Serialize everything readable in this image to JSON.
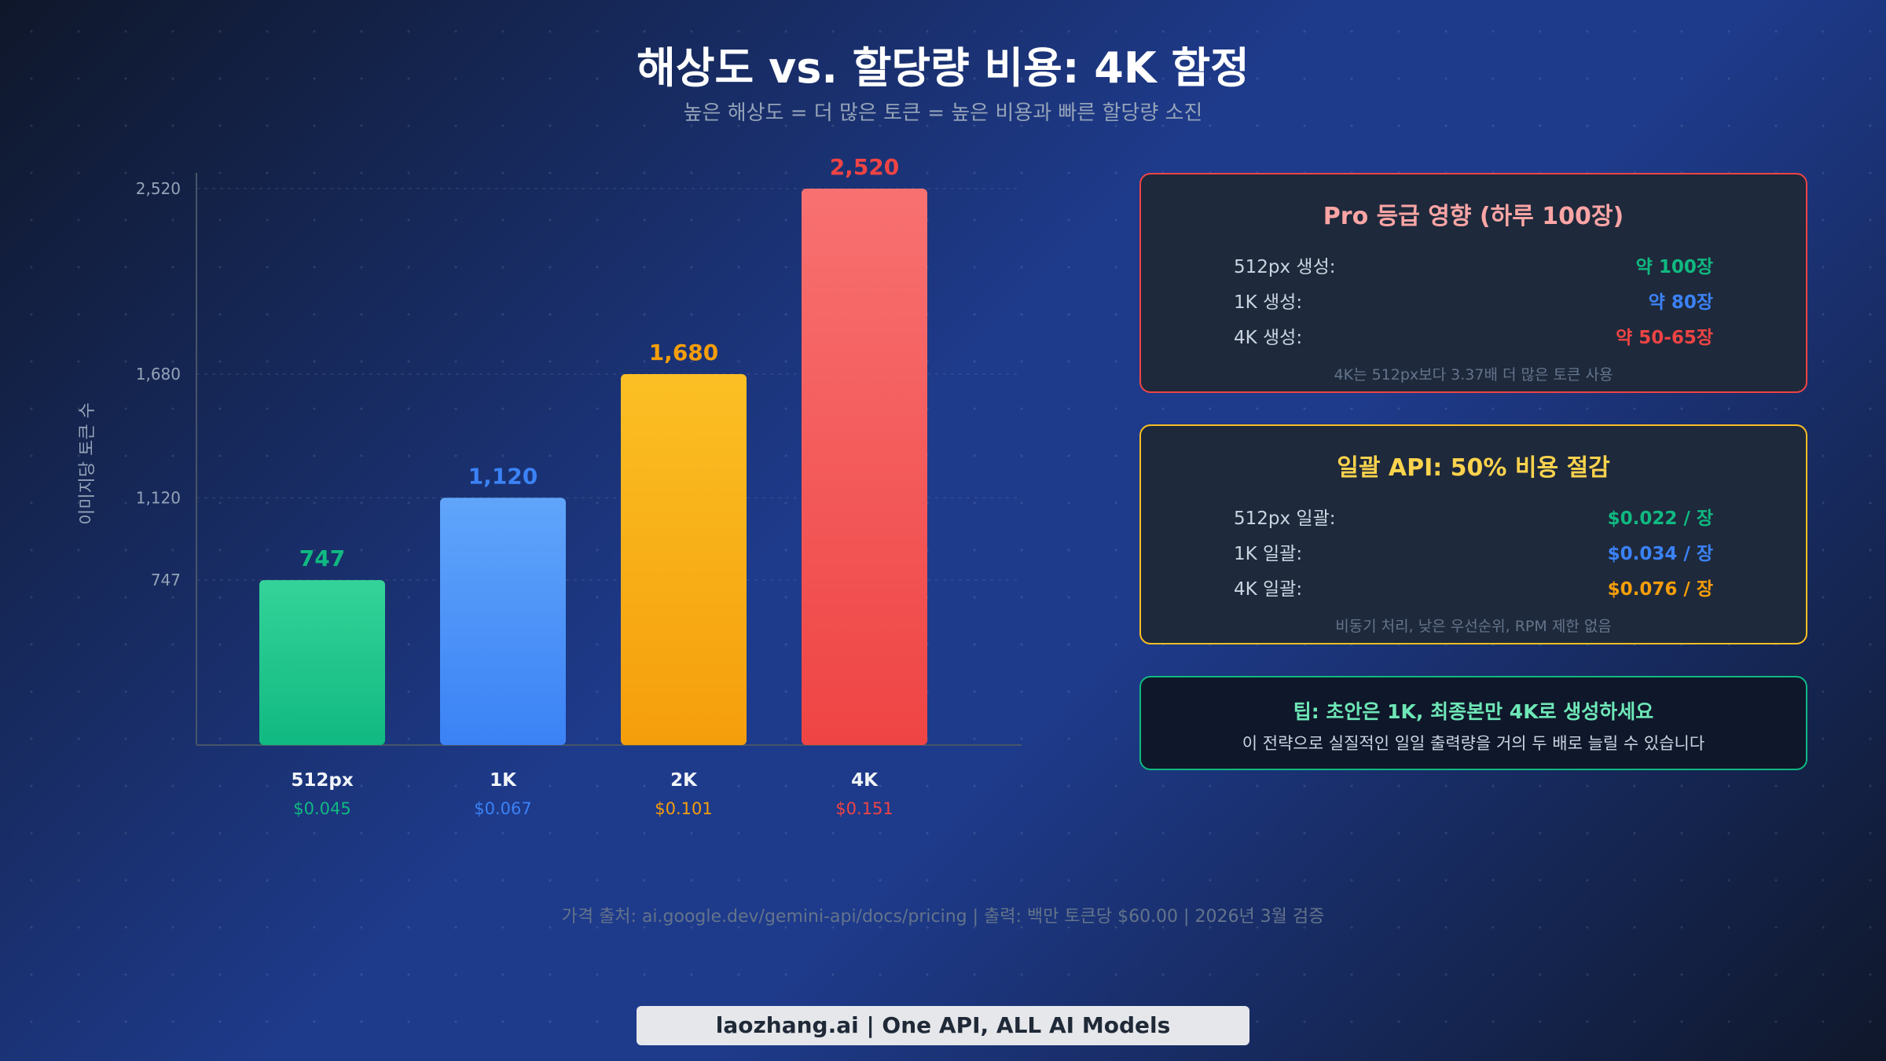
{
  "title": "해상도 vs. 할당량 비용: 4K 함정",
  "subtitle": "높은 해상도 = 더 많은 토큰 = 높은 비용과 빠른 할당량 소진",
  "chart_data": {
    "type": "bar",
    "ylabel": "이미지당 토큰 수",
    "ylim": [
      0,
      2520
    ],
    "yticks": [
      "747",
      "1,120",
      "1,680",
      "2,520"
    ],
    "ytick_values": [
      747,
      1120,
      1680,
      2520
    ],
    "categories": [
      "512px",
      "1K",
      "2K",
      "4K"
    ],
    "values": [
      747,
      1120,
      1680,
      2520
    ],
    "value_labels": [
      "747",
      "1,120",
      "1,680",
      "2,520"
    ],
    "prices": [
      "$0.045",
      "$0.067",
      "$0.101",
      "$0.151"
    ],
    "colors": [
      "#10b981",
      "#3b82f6",
      "#f59e0b",
      "#ef4444"
    ],
    "colors_light": [
      "#34d399",
      "#60a5fa",
      "#fbbf24",
      "#f87171"
    ],
    "grid": true
  },
  "pro_panel": {
    "title": "Pro 등급 영향 (하루 100장)",
    "rows": [
      {
        "label": "512px 생성:",
        "value": "약 100장",
        "color": "#10b981"
      },
      {
        "label": "1K 생성:",
        "value": "약 80장",
        "color": "#3b82f6"
      },
      {
        "label": "4K 생성:",
        "value": "약 50-65장",
        "color": "#ef4444"
      }
    ],
    "note": "4K는 512px보다 3.37배 더 많은 토큰 사용",
    "border_color": "#ef4444",
    "title_color": "#fca5a5"
  },
  "batch_panel": {
    "title": "일괄 API: 50% 비용 절감",
    "rows": [
      {
        "label": "512px 일괄:",
        "value": "$0.022 / 장",
        "color": "#10b981"
      },
      {
        "label": "1K 일괄:",
        "value": "$0.034 / 장",
        "color": "#3b82f6"
      },
      {
        "label": "4K 일괄:",
        "value": "$0.076 / 장",
        "color": "#f59e0b"
      }
    ],
    "note": "비동기 처리, 낮은 우선순위, RPM 제한 없음",
    "border_color": "#fbbf24",
    "title_color": "#fcd34d"
  },
  "tip_panel": {
    "title": "팁: 초안은 1K, 최종본만 4K로 생성하세요",
    "text": "이 전략으로 실질적인 일일 출력량을 거의 두 배로 늘릴 수 있습니다",
    "border_color": "#10b981",
    "title_color": "#6ee7b7"
  },
  "source": "가격 출처: ai.google.dev/gemini-api/docs/pricing | 출력: 백만 토큰당 $60.00 | 2026년 3월 검증",
  "brand": "laozhang.ai | One API, ALL AI Models"
}
